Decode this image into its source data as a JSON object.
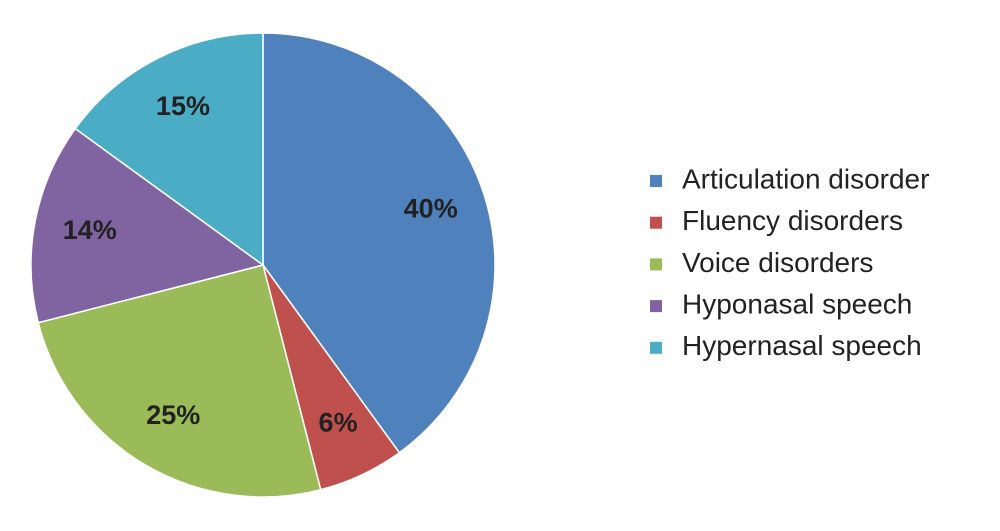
{
  "chart_data": {
    "type": "pie",
    "categories": [
      "Articulation disorder",
      "Fluency disorders",
      "Voice disorders",
      "Hyponasal speech",
      "Hypernasal speech"
    ],
    "values": [
      40,
      6,
      25,
      14,
      15
    ],
    "value_labels": [
      "40%",
      "6%",
      "25%",
      "14%",
      "15%"
    ],
    "colors": [
      "#4f81bd",
      "#c0504d",
      "#9bbb59",
      "#8064a2",
      "#4bacc6"
    ],
    "legend": "right"
  }
}
